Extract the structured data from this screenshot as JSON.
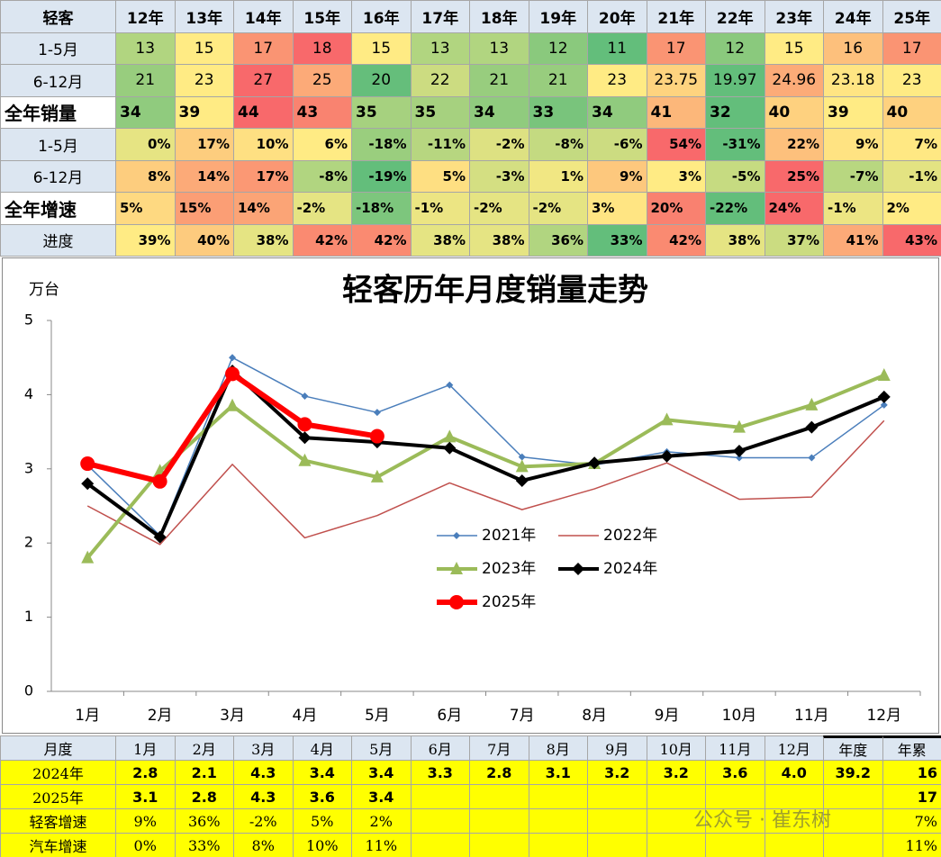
{
  "top_table": {
    "header": [
      "轻客",
      "12年",
      "13年",
      "14年",
      "15年",
      "16年",
      "17年",
      "18年",
      "19年",
      "20年",
      "21年",
      "22年",
      "23年",
      "24年",
      "25年"
    ],
    "rows": [
      [
        "1-5月",
        "13",
        "15",
        "17",
        "18",
        "15",
        "13",
        "13",
        "12",
        "11",
        "17",
        "12",
        "15",
        "16",
        "17"
      ],
      [
        "6-12月",
        "21",
        "23",
        "27",
        "25",
        "20",
        "22",
        "21",
        "21",
        "23",
        "23.75",
        "19.97",
        "24.96",
        "23.18",
        "23"
      ],
      [
        "全年销量",
        "34",
        "39",
        "44",
        "43",
        "35",
        "35",
        "34",
        "33",
        "34",
        "41",
        "32",
        "40",
        "39",
        "40"
      ],
      [
        "1-5月",
        "0%",
        "17%",
        "10%",
        "6%",
        "-18%",
        "-11%",
        "-2%",
        "-8%",
        "-6%",
        "54%",
        "-31%",
        "22%",
        "9%",
        "7%"
      ],
      [
        "6-12月",
        "8%",
        "14%",
        "17%",
        "-8%",
        "-19%",
        "5%",
        "-3%",
        "1%",
        "9%",
        "3%",
        "-5%",
        "25%",
        "-7%",
        "-1%"
      ],
      [
        "全年增速",
        "5%",
        "15%",
        "14%",
        "-2%",
        "-18%",
        "-1%",
        "-2%",
        "-2%",
        "3%",
        "20%",
        "-22%",
        "24%",
        "-1%",
        "2%"
      ],
      [
        "进度",
        "39%",
        "40%",
        "38%",
        "42%",
        "42%",
        "38%",
        "38%",
        "36%",
        "33%",
        "42%",
        "38%",
        "37%",
        "41%",
        "43%"
      ]
    ]
  },
  "chart_data": {
    "type": "line",
    "title": "轻客历年月度销量走势",
    "y_label": "万台",
    "categories": [
      "1月",
      "2月",
      "3月",
      "4月",
      "5月",
      "6月",
      "7月",
      "8月",
      "9月",
      "10月",
      "11月",
      "12月"
    ],
    "ylim": [
      0,
      5
    ],
    "yticks": [
      0,
      1,
      2,
      3,
      4,
      5
    ],
    "grid": false,
    "series": [
      {
        "name": "2021年",
        "color": "#4a7ebb",
        "width": 1.5,
        "marker": "diamond",
        "values": [
          3.05,
          2.1,
          4.5,
          3.98,
          3.76,
          4.13,
          3.16,
          3.05,
          3.23,
          3.15,
          3.15,
          3.86
        ]
      },
      {
        "name": "2022年",
        "color": "#c0504d",
        "width": 1.5,
        "marker": "none",
        "values": [
          2.5,
          1.98,
          3.06,
          2.07,
          2.37,
          2.81,
          2.45,
          2.73,
          3.08,
          2.59,
          2.62,
          3.65
        ]
      },
      {
        "name": "2023年",
        "color": "#9bbb59",
        "width": 4,
        "marker": "triangle",
        "values": [
          1.8,
          2.97,
          3.85,
          3.11,
          2.89,
          3.43,
          3.03,
          3.07,
          3.66,
          3.56,
          3.86,
          4.26
        ]
      },
      {
        "name": "2024年",
        "color": "#000000",
        "width": 4,
        "marker": "diamond",
        "values": [
          2.8,
          2.08,
          4.32,
          3.42,
          3.36,
          3.28,
          2.84,
          3.08,
          3.17,
          3.24,
          3.56,
          3.97
        ]
      },
      {
        "name": "2025年",
        "color": "#ff0000",
        "width": 6,
        "marker": "circle",
        "values": [
          3.07,
          2.83,
          4.28,
          3.6,
          3.44,
          null,
          null,
          null,
          null,
          null,
          null,
          null
        ]
      }
    ]
  },
  "bottom_table": {
    "header": [
      "月度",
      "1月",
      "2月",
      "3月",
      "4月",
      "5月",
      "6月",
      "7月",
      "8月",
      "9月",
      "10月",
      "11月",
      "12月",
      "年度",
      "年累"
    ],
    "rows": [
      [
        "2024年",
        "2.8",
        "2.1",
        "4.3",
        "3.4",
        "3.4",
        "3.3",
        "2.8",
        "3.1",
        "3.2",
        "3.2",
        "3.6",
        "4.0",
        "39.2",
        "16"
      ],
      [
        "2025年",
        "3.1",
        "2.8",
        "4.3",
        "3.6",
        "3.4",
        null,
        null,
        null,
        null,
        null,
        null,
        null,
        null,
        "17"
      ],
      [
        "轻客增速",
        "9%",
        "36%",
        "-2%",
        "5%",
        "2%",
        null,
        null,
        null,
        null,
        null,
        null,
        null,
        null,
        "7%"
      ],
      [
        "汽车增速",
        "0%",
        "33%",
        "8%",
        "10%",
        "11%",
        null,
        null,
        null,
        null,
        null,
        null,
        null,
        null,
        "11%"
      ]
    ]
  },
  "watermark": "公众号 · 崔东树"
}
